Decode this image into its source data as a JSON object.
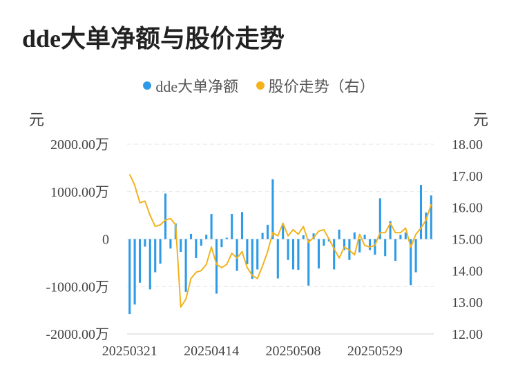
{
  "title": "dde大单净额与股价走势",
  "legend": [
    {
      "label": "dde大单净额",
      "color": "#2f9be6"
    },
    {
      "label": "股价走势（右）",
      "color": "#f3b21c"
    }
  ],
  "units": {
    "left": "元",
    "right": "元"
  },
  "chart_data": {
    "type": "bar+line",
    "title": "dde大单净额与股价走势",
    "y_left": {
      "min": -2000,
      "max": 2000,
      "ticks": [
        2000,
        1000,
        0,
        -1000,
        -2000
      ],
      "tick_labels": [
        "2000.00万",
        "1000.00万",
        "0",
        "-1000.00万",
        "-2000.00万"
      ]
    },
    "y_right": {
      "min": 12,
      "max": 18,
      "ticks": [
        18,
        17,
        16,
        15,
        14,
        13,
        12
      ],
      "tick_labels": [
        "18.00",
        "17.00",
        "16.00",
        "15.00",
        "14.00",
        "13.00",
        "12.00"
      ]
    },
    "x_tick_labels": [
      {
        "index": 0,
        "label": "20250321"
      },
      {
        "index": 16,
        "label": "20250414"
      },
      {
        "index": 32,
        "label": "20250508"
      },
      {
        "index": 48,
        "label": "20250529"
      }
    ],
    "series": [
      {
        "name": "dde大单净额",
        "type": "bar",
        "axis": "left",
        "color": "#2f9be6",
        "values": [
          -1580,
          -1380,
          -920,
          -160,
          -1060,
          -700,
          -520,
          960,
          -200,
          330,
          -270,
          -1110,
          110,
          -400,
          -140,
          90,
          530,
          -1150,
          -170,
          30,
          530,
          -670,
          570,
          -530,
          -840,
          -640,
          130,
          300,
          1260,
          -830,
          330,
          -440,
          -640,
          -650,
          80,
          -980,
          120,
          -620,
          -140,
          -50,
          -640,
          200,
          -230,
          -440,
          140,
          -280,
          90,
          -230,
          -330,
          860,
          -360,
          380,
          -460,
          90,
          140,
          -970,
          -700,
          1140,
          560,
          920
        ]
      },
      {
        "name": "股价走势（右）",
        "type": "line",
        "axis": "right",
        "color": "#f3b21c",
        "values": [
          17.05,
          16.7,
          16.15,
          16.2,
          15.75,
          15.4,
          15.45,
          15.6,
          15.65,
          15.45,
          12.85,
          13.1,
          13.75,
          13.95,
          14.0,
          14.2,
          14.75,
          14.2,
          14.1,
          14.2,
          14.55,
          14.4,
          14.6,
          14.1,
          13.85,
          13.75,
          14.15,
          14.6,
          15.2,
          15.1,
          15.5,
          15.1,
          15.3,
          15.15,
          15.4,
          14.9,
          15.05,
          15.25,
          15.3,
          15.0,
          14.7,
          14.4,
          14.75,
          14.65,
          14.5,
          15.15,
          14.8,
          14.75,
          14.8,
          15.2,
          15.2,
          15.5,
          15.2,
          15.2,
          15.35,
          14.75,
          15.15,
          15.35,
          15.6,
          16.1
        ]
      }
    ],
    "grid": true
  }
}
